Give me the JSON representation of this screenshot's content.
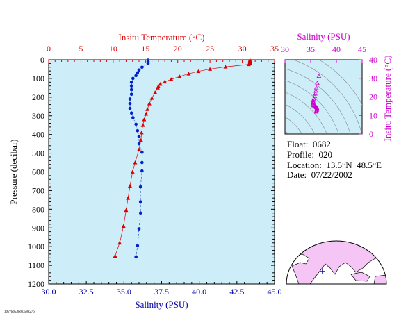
{
  "chart_data": [
    {
      "type": "line",
      "title": "",
      "top_axis_label": "Insitu Temperature (°C)",
      "top_axis_ticks": [
        0,
        5,
        10,
        15,
        20,
        25,
        30,
        35
      ],
      "xlabel": "Salinity (PSU)",
      "ylabel": "Pressure (decibar)",
      "xlim_salinity": [
        30.0,
        45.0
      ],
      "xlim_temperature": [
        0,
        35
      ],
      "ylim": [
        0,
        1200
      ],
      "y_inverted": true,
      "x_ticks": [
        "30.0",
        "32.5",
        "35.0",
        "37.5",
        "40.0",
        "42.5",
        "45.0"
      ],
      "y_ticks": [
        0,
        100,
        200,
        300,
        400,
        500,
        600,
        700,
        800,
        900,
        1000,
        1100,
        1200
      ],
      "background": "#cdeef8",
      "series": [
        {
          "variable": "temperature",
          "color": "#dd0000",
          "marker": "triangle",
          "points": [
            [
              31.2,
              2
            ],
            [
              31.2,
              5
            ],
            [
              31.2,
              8
            ],
            [
              31.2,
              12
            ],
            [
              31.2,
              18
            ],
            [
              31.0,
              25
            ],
            [
              27.4,
              38
            ],
            [
              25.0,
              50
            ],
            [
              23.2,
              62
            ],
            [
              21.7,
              75
            ],
            [
              20.3,
              90
            ],
            [
              19.0,
              105
            ],
            [
              18.0,
              118
            ],
            [
              17.3,
              130
            ],
            [
              17.0,
              142
            ],
            [
              16.9,
              150
            ],
            [
              16.5,
              175
            ],
            [
              16.0,
              205
            ],
            [
              15.6,
              235
            ],
            [
              15.3,
              265
            ],
            [
              15.1,
              290
            ],
            [
              14.8,
              320
            ],
            [
              14.6,
              350
            ],
            [
              14.4,
              390
            ],
            [
              14.3,
              430
            ],
            [
              14.0,
              480
            ],
            [
              13.4,
              550
            ],
            [
              13.0,
              600
            ],
            [
              12.6,
              675
            ],
            [
              12.3,
              740
            ],
            [
              12.0,
              805
            ],
            [
              11.6,
              890
            ],
            [
              11.0,
              980
            ],
            [
              10.3,
              1050
            ]
          ]
        },
        {
          "variable": "salinity",
          "color": "#0022cc",
          "marker": "circle",
          "points": [
            [
              36.6,
              2
            ],
            [
              36.6,
              10
            ],
            [
              36.6,
              20
            ],
            [
              36.2,
              40
            ],
            [
              36.0,
              55
            ],
            [
              35.9,
              70
            ],
            [
              35.8,
              85
            ],
            [
              35.6,
              100
            ],
            [
              35.5,
              120
            ],
            [
              35.5,
              140
            ],
            [
              35.5,
              160
            ],
            [
              35.5,
              185
            ],
            [
              35.4,
              210
            ],
            [
              35.4,
              235
            ],
            [
              35.4,
              260
            ],
            [
              35.5,
              285
            ],
            [
              35.6,
              310
            ],
            [
              35.8,
              345
            ],
            [
              35.9,
              380
            ],
            [
              36.0,
              410
            ],
            [
              36.0,
              450
            ],
            [
              36.2,
              495
            ],
            [
              36.2,
              550
            ],
            [
              36.2,
              595
            ],
            [
              36.1,
              680
            ],
            [
              36.1,
              760
            ],
            [
              36.1,
              820
            ],
            [
              36.0,
              905
            ],
            [
              35.9,
              995
            ],
            [
              35.8,
              1055
            ]
          ]
        }
      ]
    },
    {
      "type": "scatter",
      "title": "",
      "xlabel": "Salinity (PSU)",
      "ylabel": "Insitu Temperature (°C)",
      "xlim": [
        30,
        45
      ],
      "ylim": [
        0,
        40
      ],
      "x_ticks": [
        30,
        35,
        40,
        45
      ],
      "y_ticks": [
        0,
        10,
        20,
        30,
        40
      ],
      "color": "#cc00cc",
      "points": [
        [
          36.6,
          31.2
        ],
        [
          36.3,
          27.4
        ],
        [
          36.1,
          25.0
        ],
        [
          36.0,
          23.2
        ],
        [
          35.9,
          21.7
        ],
        [
          35.8,
          20.3
        ],
        [
          35.6,
          19.0
        ],
        [
          35.5,
          18.0
        ],
        [
          35.5,
          17.3
        ],
        [
          35.5,
          17.0
        ],
        [
          35.4,
          16.5
        ],
        [
          35.4,
          16.0
        ],
        [
          35.5,
          15.6
        ],
        [
          35.6,
          15.3
        ],
        [
          35.8,
          15.1
        ],
        [
          35.9,
          14.8
        ],
        [
          36.0,
          14.6
        ],
        [
          36.1,
          14.4
        ],
        [
          36.2,
          14.3
        ],
        [
          36.2,
          14.0
        ],
        [
          36.2,
          13.4
        ],
        [
          36.2,
          13.0
        ],
        [
          36.1,
          12.6
        ],
        [
          36.1,
          12.3
        ],
        [
          36.1,
          12.0
        ]
      ]
    }
  ],
  "float_info": {
    "float": "Float:  0682",
    "profile": "Profile:  020",
    "location": "Location:  13.5°N  48.5°E",
    "date": "Date:  07/22/2002"
  },
  "footer_code": "1027805360.0588276",
  "map": {
    "land_color": "#f5c6f5",
    "ocean_color": "#ffffff",
    "float_marker_color": "#0000cc",
    "float_lat": 13.5,
    "float_lon": 48.5
  }
}
